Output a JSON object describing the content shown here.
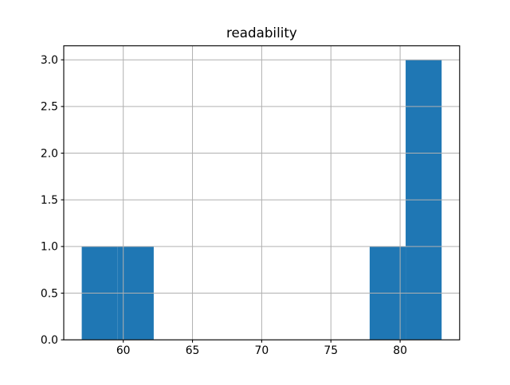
{
  "chart_data": {
    "type": "bar",
    "subtype": "histogram",
    "title": "readability",
    "xlabel": "",
    "ylabel": "",
    "bin_edges": [
      57.0,
      59.6,
      62.2,
      64.8,
      67.4,
      70.0,
      72.6,
      75.2,
      77.8,
      80.4,
      83.0
    ],
    "counts": [
      1,
      1,
      0,
      0,
      0,
      0,
      0,
      0,
      1,
      3
    ],
    "xlim": [
      55.7,
      84.3
    ],
    "ylim": [
      0,
      3.15
    ],
    "x_ticks": [
      60,
      65,
      70,
      75,
      80
    ],
    "x_tick_labels": [
      "60",
      "65",
      "70",
      "75",
      "80"
    ],
    "y_ticks": [
      0.0,
      0.5,
      1.0,
      1.5,
      2.0,
      2.5,
      3.0
    ],
    "y_tick_labels": [
      "0.0",
      "0.5",
      "1.0",
      "1.5",
      "2.0",
      "2.5",
      "3.0"
    ],
    "grid": true,
    "grid_over_bars": true,
    "legend": null,
    "colors": {
      "bar": "#1f77b4",
      "grid": "#b0b0b0",
      "spine": "#000000",
      "text": "#000000",
      "background": "#ffffff"
    }
  }
}
